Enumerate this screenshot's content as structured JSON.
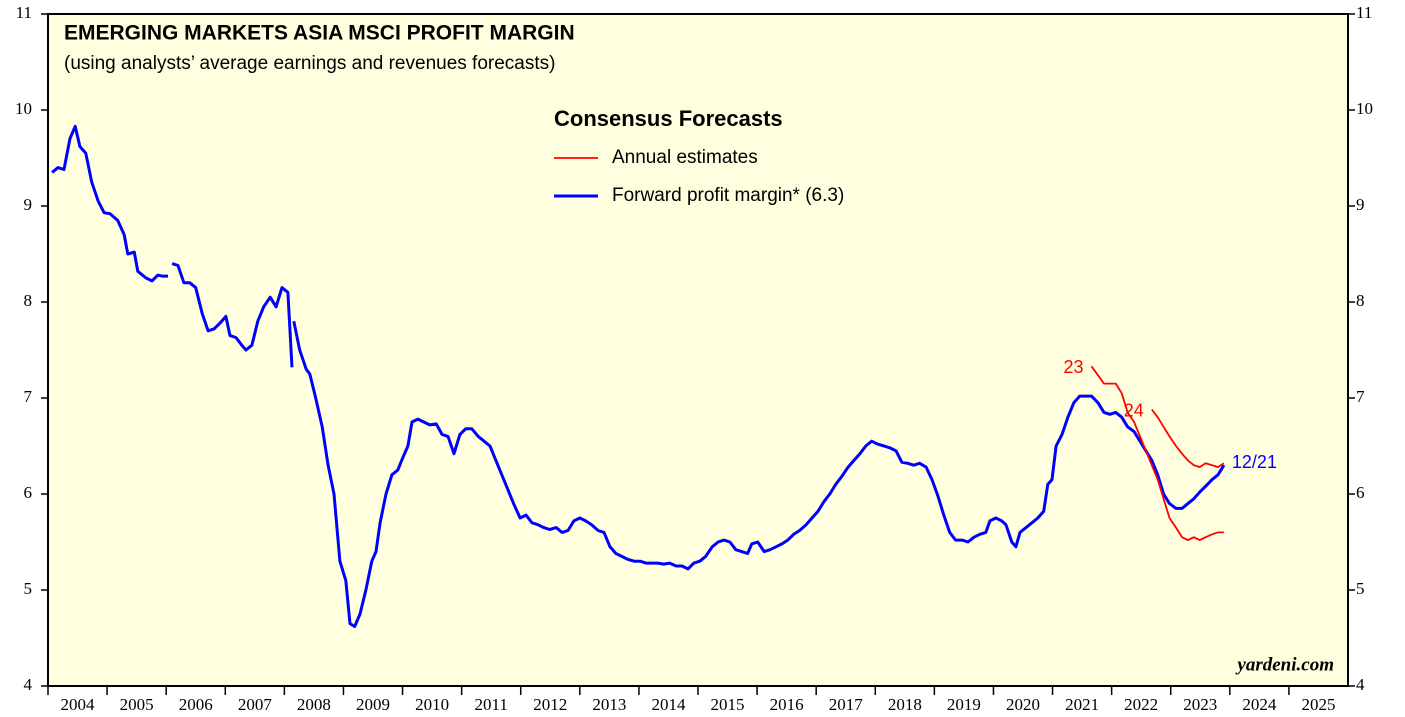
{
  "chart_data": {
    "type": "line",
    "title": "EMERGING MARKETS ASIA MSCI PROFIT MARGIN",
    "subtitle": "(using analysts’ average earnings and revenues forecasts)",
    "legend": {
      "title": "Consensus Forecasts",
      "entries": [
        {
          "label": "Annual estimates",
          "color": "#ff0000"
        }
      ]
    },
    "source": "yardeni.com",
    "xlim": [
      2004,
      2026
    ],
    "xticks": [
      2004,
      2005,
      2006,
      2007,
      2008,
      2009,
      2010,
      2011,
      2012,
      2013,
      2014,
      2015,
      2016,
      2017,
      2018,
      2019,
      2020,
      2021,
      2022,
      2023,
      2024,
      2025
    ],
    "ylim": [
      4,
      11
    ],
    "yticks": [
      4,
      5,
      6,
      7,
      8,
      9,
      10,
      11
    ],
    "background": "#ffffe0",
    "series": [
      {
        "name": "Forward profit margin* (6.3)",
        "color": "#0000ff",
        "end_label": "12/21",
        "x": [
          2004.07,
          2004.17,
          2004.27,
          2004.37,
          2004.46,
          2004.54,
          2004.64,
          2004.74,
          2004.85,
          2004.95,
          2005.05,
          2005.18,
          2005.29,
          2005.35,
          2005.46,
          2005.52,
          2005.66,
          2005.76,
          2005.86,
          2005.93,
          2006.03,
          2006.06,
          2006.1,
          2006.2,
          2006.3,
          2006.4,
          2006.5,
          2006.61,
          2006.71,
          2006.81,
          2006.91,
          2007.01,
          2007.08,
          2007.18,
          2007.28,
          2007.35,
          2007.45,
          2007.55,
          2007.65,
          2007.76,
          2007.86,
          2007.96,
          2008.06,
          2008.13,
          2008.14,
          2008.16,
          2008.26,
          2008.37,
          2008.43,
          2008.53,
          2008.64,
          2008.74,
          2008.84,
          2008.94,
          2009.04,
          2009.11,
          2009.19,
          2009.28,
          2009.38,
          2009.48,
          2009.55,
          2009.62,
          2009.72,
          2009.82,
          2009.92,
          2010.02,
          2010.09,
          2010.16,
          2010.26,
          2010.36,
          2010.46,
          2010.57,
          2010.67,
          2010.77,
          2010.87,
          2010.97,
          2011.07,
          2011.17,
          2011.28,
          2011.38,
          2011.48,
          2011.58,
          2011.68,
          2011.78,
          2011.88,
          2011.99,
          2012.09,
          2012.19,
          2012.29,
          2012.39,
          2012.49,
          2012.6,
          2012.7,
          2012.8,
          2012.9,
          2013.0,
          2013.1,
          2013.2,
          2013.31,
          2013.41,
          2013.51,
          2013.61,
          2013.71,
          2013.81,
          2013.92,
          2014.02,
          2014.12,
          2014.22,
          2014.32,
          2014.42,
          2014.52,
          2014.63,
          2014.73,
          2014.83,
          2014.93,
          2015.03,
          2015.13,
          2015.24,
          2015.34,
          2015.44,
          2015.54,
          2015.64,
          2015.74,
          2015.84,
          2015.91,
          2016.01,
          2016.12,
          2016.22,
          2016.32,
          2016.42,
          2016.52,
          2016.62,
          2016.72,
          2016.83,
          2016.93,
          2017.03,
          2017.13,
          2017.23,
          2017.33,
          2017.43,
          2017.54,
          2017.64,
          2017.74,
          2017.84,
          2017.94,
          2018.04,
          2018.15,
          2018.25,
          2018.35,
          2018.45,
          2018.55,
          2018.65,
          2018.75,
          2018.86,
          2018.96,
          2019.06,
          2019.16,
          2019.26,
          2019.36,
          2019.47,
          2019.57,
          2019.67,
          2019.77,
          2019.87,
          2019.94,
          2020.04,
          2020.14,
          2020.21,
          2020.31,
          2020.38,
          2020.45,
          2020.55,
          2020.65,
          2020.75,
          2020.85,
          2020.92,
          2020.99,
          2021.06,
          2021.16,
          2021.26,
          2021.36,
          2021.46,
          2021.56,
          2021.66,
          2021.77,
          2021.87,
          2021.97,
          2022.07,
          2022.17,
          2022.27,
          2022.38,
          2022.48,
          2022.58,
          2022.68,
          2022.78,
          2022.88,
          2022.98,
          2023.09,
          2023.19,
          2023.29,
          2023.39,
          2023.49,
          2023.59,
          2023.7,
          2023.8,
          2023.9
        ],
        "values": [
          9.35,
          9.4,
          9.38,
          9.7,
          9.83,
          9.62,
          9.55,
          9.25,
          9.05,
          8.93,
          8.92,
          8.85,
          8.7,
          8.5,
          8.52,
          8.32,
          8.25,
          8.22,
          8.28,
          8.27,
          8.27,
          null,
          8.4,
          8.38,
          8.2,
          8.2,
          8.15,
          7.88,
          7.7,
          7.72,
          7.78,
          7.85,
          7.65,
          7.63,
          7.55,
          7.5,
          7.55,
          7.8,
          7.95,
          8.05,
          7.95,
          8.15,
          8.1,
          7.32,
          null,
          7.8,
          7.5,
          7.3,
          7.25,
          7.0,
          6.7,
          6.3,
          6.0,
          5.3,
          5.1,
          4.65,
          4.62,
          4.75,
          5.0,
          5.3,
          5.4,
          5.7,
          6.0,
          6.2,
          6.25,
          6.4,
          6.5,
          6.75,
          6.78,
          6.75,
          6.72,
          6.73,
          6.62,
          6.6,
          6.42,
          6.62,
          6.68,
          6.68,
          6.6,
          6.55,
          6.5,
          6.35,
          6.2,
          6.05,
          5.9,
          5.75,
          5.78,
          5.7,
          5.68,
          5.65,
          5.63,
          5.65,
          5.6,
          5.62,
          5.72,
          5.75,
          5.72,
          5.68,
          5.62,
          5.6,
          5.45,
          5.38,
          5.35,
          5.32,
          5.3,
          5.3,
          5.28,
          5.28,
          5.28,
          5.27,
          5.28,
          5.25,
          5.25,
          5.22,
          5.28,
          5.3,
          5.35,
          5.45,
          5.5,
          5.52,
          5.5,
          5.42,
          5.4,
          5.38,
          5.48,
          5.5,
          5.4,
          5.42,
          5.45,
          5.48,
          5.52,
          5.58,
          5.62,
          5.68,
          5.75,
          5.82,
          5.92,
          6.0,
          6.1,
          6.18,
          6.28,
          6.35,
          6.42,
          6.5,
          6.55,
          6.52,
          6.5,
          6.48,
          6.45,
          6.33,
          6.32,
          6.3,
          6.32,
          6.28,
          6.15,
          5.98,
          5.78,
          5.6,
          5.52,
          5.52,
          5.5,
          5.55,
          5.58,
          5.6,
          5.72,
          5.75,
          5.72,
          5.68,
          5.5,
          5.45,
          5.6,
          5.65,
          5.7,
          5.75,
          5.82,
          6.1,
          6.15,
          6.5,
          6.62,
          6.8,
          6.95,
          7.02,
          7.02,
          7.02,
          6.95,
          6.85,
          6.83,
          6.85,
          6.8,
          6.7,
          6.65,
          6.55,
          6.45,
          6.35,
          6.2,
          6.0,
          5.9,
          5.85,
          5.85,
          5.9,
          5.95,
          6.02,
          6.08,
          6.15,
          6.2,
          6.3
        ]
      },
      {
        "name": "23",
        "color": "#ff0000",
        "x": [
          2021.66,
          2021.87,
          2022.07,
          2022.17,
          2022.27,
          2022.38,
          2022.48,
          2022.58,
          2022.68,
          2022.78,
          2022.88,
          2022.98,
          2023.09,
          2023.19,
          2023.29,
          2023.39,
          2023.49,
          2023.59,
          2023.7,
          2023.8,
          2023.9
        ],
        "values": [
          7.33,
          7.15,
          7.15,
          7.05,
          6.85,
          6.75,
          6.6,
          6.45,
          6.3,
          6.15,
          5.95,
          5.75,
          5.65,
          5.55,
          5.52,
          5.55,
          5.52,
          5.55,
          5.58,
          5.6,
          5.6
        ]
      },
      {
        "name": "24",
        "color": "#ff0000",
        "x": [
          2022.68,
          2022.78,
          2022.88,
          2022.98,
          2023.09,
          2023.19,
          2023.29,
          2023.39,
          2023.49,
          2023.59,
          2023.7,
          2023.8,
          2023.9
        ],
        "values": [
          6.88,
          6.8,
          6.7,
          6.6,
          6.5,
          6.42,
          6.35,
          6.3,
          6.28,
          6.32,
          6.3,
          6.28,
          6.32
        ]
      }
    ]
  }
}
